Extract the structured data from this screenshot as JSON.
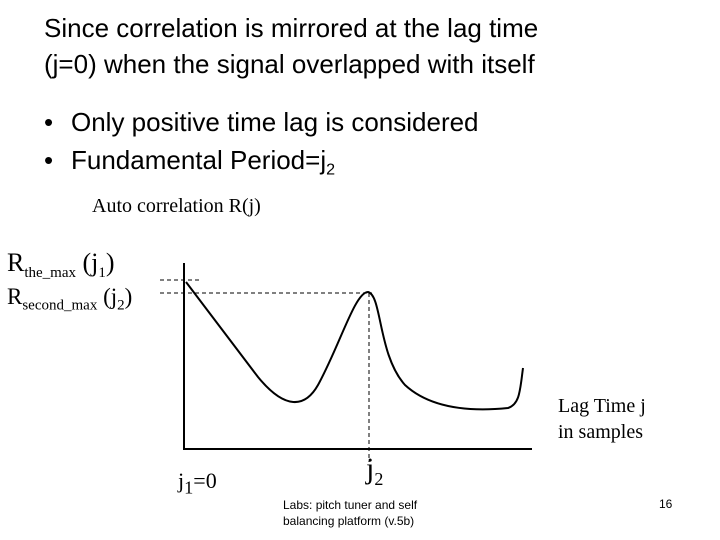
{
  "slide": {
    "title_line1": "Since correlation is mirrored at the lag time",
    "title_line2": "(j=0) when the signal overlapped with itself",
    "bullets": [
      {
        "text": "Only positive time lag is considered",
        "sub": ""
      },
      {
        "text": "Fundamental Period=j",
        "sub": "2"
      }
    ]
  },
  "figure": {
    "y_axis_label": "Auto correlation R(j)",
    "r_max_main": "R",
    "r_max_sub": "the_max",
    "r_max_arg": " (j",
    "r_max_arg_sub": "1",
    "r_max_close": ")",
    "r_second_main": "R",
    "r_second_sub": "second_max",
    "r_second_arg": " (j",
    "r_second_arg_sub": "2",
    "r_second_close": ")",
    "x_axis_line1": "Lag Time j",
    "x_axis_line2": "in samples",
    "j1_label_main": "j",
    "j1_label_sub": "1",
    "j1_label_rest": "=0",
    "j2_label_main": "j",
    "j2_label_sub": "2"
  },
  "footer": {
    "line1": "Labs: pitch tuner and self",
    "line2": "balancing platform (v.5b)",
    "page_number": "16"
  }
}
